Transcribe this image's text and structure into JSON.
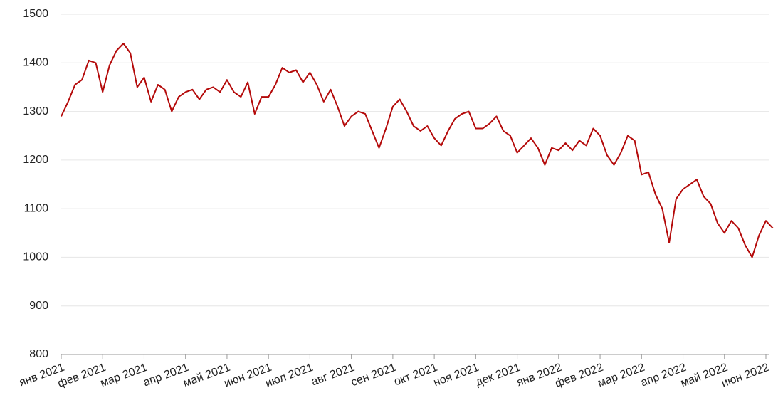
{
  "chart_data": {
    "type": "line",
    "categories": [
      "янв 2021",
      null,
      null,
      null,
      null,
      null,
      "фев 2021",
      null,
      null,
      null,
      null,
      null,
      "мар 2021",
      null,
      null,
      null,
      null,
      null,
      "апр 2021",
      null,
      null,
      null,
      null,
      null,
      "май 2021",
      null,
      null,
      null,
      null,
      null,
      "июн 2021",
      null,
      null,
      null,
      null,
      null,
      "июл 2021",
      null,
      null,
      null,
      null,
      null,
      "авг 2021",
      null,
      null,
      null,
      null,
      null,
      "сен 2021",
      null,
      null,
      null,
      null,
      null,
      "окт 2021",
      null,
      null,
      null,
      null,
      null,
      "ноя 2021",
      null,
      null,
      null,
      null,
      null,
      "дек 2021",
      null,
      null,
      null,
      null,
      null,
      "янв 2022",
      null,
      null,
      null,
      null,
      null,
      "фев 2022",
      null,
      null,
      null,
      null,
      null,
      "мар 2022",
      null,
      null,
      null,
      null,
      null,
      "апр 2022",
      null,
      null,
      null,
      null,
      null,
      "май 2022",
      null,
      null,
      null,
      null,
      null,
      "июн 2022",
      null
    ],
    "values": [
      1290,
      1320,
      1355,
      1365,
      1405,
      1400,
      1340,
      1395,
      1425,
      1440,
      1420,
      1350,
      1370,
      1320,
      1355,
      1345,
      1300,
      1330,
      1340,
      1345,
      1325,
      1345,
      1350,
      1340,
      1365,
      1340,
      1330,
      1360,
      1295,
      1330,
      1330,
      1355,
      1390,
      1380,
      1385,
      1360,
      1380,
      1355,
      1320,
      1345,
      1310,
      1270,
      1290,
      1300,
      1295,
      1260,
      1225,
      1265,
      1310,
      1325,
      1300,
      1270,
      1260,
      1270,
      1245,
      1230,
      1260,
      1285,
      1295,
      1300,
      1265,
      1265,
      1275,
      1290,
      1260,
      1250,
      1215,
      1230,
      1245,
      1225,
      1190,
      1225,
      1220,
      1235,
      1220,
      1240,
      1230,
      1265,
      1250,
      1210,
      1190,
      1215,
      1250,
      1240,
      1170,
      1175,
      1130,
      1100,
      1030,
      1120,
      1140,
      1150,
      1160,
      1125,
      1110,
      1070,
      1050,
      1075,
      1060,
      1025,
      1000,
      1045,
      1075,
      1060
    ],
    "color": "#b40a0a",
    "ylim": [
      800,
      1500
    ],
    "yticks": [
      800,
      900,
      1000,
      1100,
      1200,
      1300,
      1400,
      1500
    ],
    "grid": true
  }
}
